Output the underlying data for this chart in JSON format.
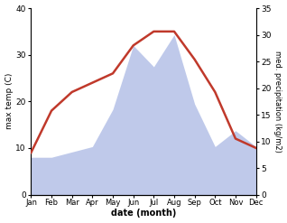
{
  "months": [
    "Jan",
    "Feb",
    "Mar",
    "Apr",
    "May",
    "Jun",
    "Jul",
    "Aug",
    "Sep",
    "Oct",
    "Nov",
    "Dec"
  ],
  "temperature": [
    9,
    18,
    22,
    24,
    26,
    32,
    35,
    35,
    29,
    22,
    12,
    10
  ],
  "precipitation": [
    7,
    7,
    8,
    9,
    16,
    28,
    24,
    30,
    17,
    9,
    12,
    9
  ],
  "temp_color": "#c0392b",
  "precip_color_fill": "#b8c4e8",
  "temp_ylim": [
    0,
    40
  ],
  "precip_ylim": [
    0,
    35
  ],
  "temp_yticks": [
    0,
    10,
    20,
    30,
    40
  ],
  "precip_yticks": [
    0,
    5,
    10,
    15,
    20,
    25,
    30,
    35
  ],
  "xlabel": "date (month)",
  "ylabel_left": "max temp (C)",
  "ylabel_right": "med. precipitation (kg/m2)"
}
